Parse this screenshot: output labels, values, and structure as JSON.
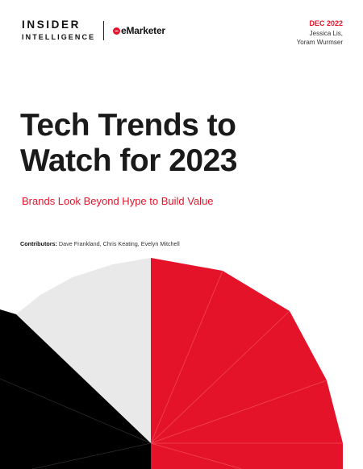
{
  "header": {
    "logo_line1": "INSIDER",
    "logo_line2": "INTELLIGENCE",
    "partner_logo": "eMarketer",
    "partner_icon": "emarketer-e-icon",
    "date": "DEC 2022",
    "authors": [
      "Jessica Lis,",
      "Yoram Wurmser"
    ]
  },
  "cover": {
    "title_line1": "Tech Trends to",
    "title_line2": "Watch for 2023",
    "subtitle": "Brands Look Beyond Hype to Build Value",
    "contributors_label": "Contributors:",
    "contributors_names": " Dave Frankland, Chris Keating, Evelyn Mitchell"
  },
  "colors": {
    "accent_red": "#e5132a",
    "black": "#000000",
    "light_gray": "#e9e9e9",
    "text_dark": "#1a1a1a"
  }
}
